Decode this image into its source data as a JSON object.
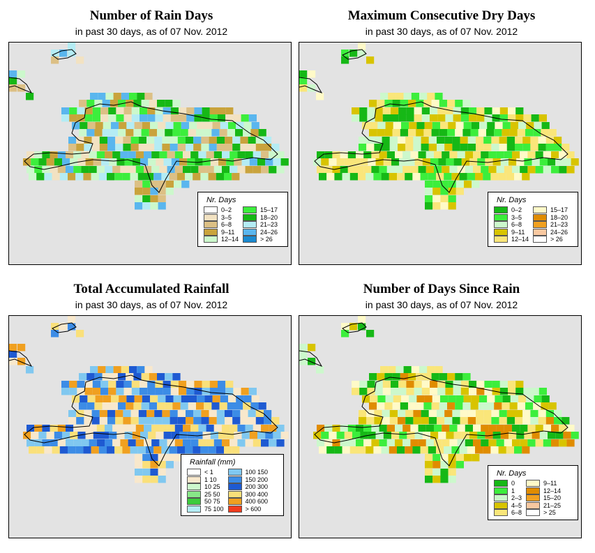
{
  "panels": [
    {
      "title": "Number of Rain Days",
      "subtitle": "in past 30 days, as of  07 Nov. 2012",
      "legend": {
        "title": "Nr. Days",
        "items": [
          {
            "label": "0–2",
            "color": "#ffffff"
          },
          {
            "label": "3–5",
            "color": "#f2e2c2"
          },
          {
            "label": "6–8",
            "color": "#dcc085"
          },
          {
            "label": "9–11",
            "color": "#c9a33c"
          },
          {
            "label": "12–14",
            "color": "#ccf8cc"
          },
          {
            "label": "15–17",
            "color": "#3cee3c"
          },
          {
            "label": "18–20",
            "color": "#16b816"
          },
          {
            "label": "21–23",
            "color": "#b4ecf4"
          },
          {
            "label": "24–26",
            "color": "#5ab6ee"
          },
          {
            "label": "> 26",
            "color": "#1a8ad0"
          }
        ]
      }
    },
    {
      "title": "Maximum Consecutive Dry Days",
      "subtitle": "in past 30 days, as of  07 Nov. 2012",
      "legend": {
        "title": "Nr. Days",
        "items": [
          {
            "label": "0–2",
            "color": "#16b816"
          },
          {
            "label": "3–5",
            "color": "#3cee3c"
          },
          {
            "label": "6–8",
            "color": "#ccf8cc"
          },
          {
            "label": "9–11",
            "color": "#d8c400"
          },
          {
            "label": "12–14",
            "color": "#fae67a"
          },
          {
            "label": "15–17",
            "color": "#fffac8"
          },
          {
            "label": "18–20",
            "color": "#e08c00"
          },
          {
            "label": "21–23",
            "color": "#f0a020"
          },
          {
            "label": "24–26",
            "color": "#f8c8a0"
          },
          {
            "label": "> 26",
            "color": "#ffffff"
          }
        ]
      }
    },
    {
      "title": "Total Accumulated Rainfall",
      "subtitle": "in past 30 days, as of  07 Nov. 2012",
      "legend": {
        "title": "Rainfall (mm)",
        "items": [
          {
            "label": "< 1",
            "color": "#ffffff"
          },
          {
            "label": "1   10",
            "color": "#f8e8cc"
          },
          {
            "label": "10   25",
            "color": "#ccf8cc"
          },
          {
            "label": "25   50",
            "color": "#88e888"
          },
          {
            "label": "50   75",
            "color": "#3ccc3c"
          },
          {
            "label": "75   100",
            "color": "#b4ecf4"
          },
          {
            "label": "100   150",
            "color": "#80c8f0"
          },
          {
            "label": "150   200",
            "color": "#3c8ce6"
          },
          {
            "label": "200   300",
            "color": "#1e5ad2"
          },
          {
            "label": "300   400",
            "color": "#fae07a"
          },
          {
            "label": "400   600",
            "color": "#f0a020"
          },
          {
            "label": "> 600",
            "color": "#f03c1e"
          }
        ]
      }
    },
    {
      "title": "Number of Days Since Rain",
      "subtitle": "in past 30 days, as of  07 Nov. 2012",
      "legend": {
        "title": "Nr. Days",
        "items": [
          {
            "label": "0",
            "color": "#16b816"
          },
          {
            "label": "1",
            "color": "#3cee3c"
          },
          {
            "label": "2–3",
            "color": "#ccf8cc"
          },
          {
            "label": "4–5",
            "color": "#d8c400"
          },
          {
            "label": "6–8",
            "color": "#fae67a"
          },
          {
            "label": "9–11",
            "color": "#fffac8"
          },
          {
            "label": "12–14",
            "color": "#e08c00"
          },
          {
            "label": "15–20",
            "color": "#f0a020"
          },
          {
            "label": "21–25",
            "color": "#f8c8a0"
          },
          {
            "label": "> 25",
            "color": "#ffffff"
          }
        ]
      }
    }
  ]
}
